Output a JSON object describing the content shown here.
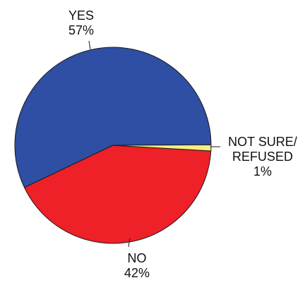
{
  "chart_data": {
    "type": "pie",
    "slices": [
      {
        "label": "YES",
        "value": 57,
        "value_label": "57%",
        "color": "#2E4FA3"
      },
      {
        "label": "NO",
        "value": 42,
        "value_label": "42%",
        "color": "#EE2028"
      },
      {
        "label": "NOT SURE/\nREFUSED",
        "value": 1,
        "value_label": "1%",
        "color": "#F4EF7A"
      }
    ]
  }
}
